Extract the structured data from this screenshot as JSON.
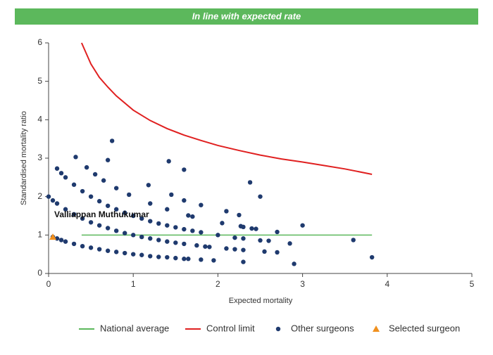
{
  "chart_data": {
    "type": "scatter",
    "banner": "In line with expected rate",
    "x_label": "Expected mortality",
    "y_label": "Standardised mortality ratio",
    "xlim": [
      0,
      5
    ],
    "xticks": [
      0,
      1,
      2,
      3,
      4,
      5
    ],
    "ylim": [
      0,
      6
    ],
    "yticks": [
      0,
      1,
      2,
      3,
      4,
      5,
      6
    ],
    "legend": "bottom",
    "annotation": {
      "text": "Valliappan Muthukumar",
      "x": 0.05,
      "y": 1.3
    },
    "series": [
      {
        "name": "National average",
        "type": "line",
        "color": "#5cb85c",
        "x": [
          0.39,
          3.82
        ],
        "values": [
          1,
          1
        ]
      },
      {
        "name": "Control limit",
        "type": "line",
        "color": "#e02020",
        "x": [
          0.39,
          0.5,
          0.6,
          0.7,
          0.8,
          1,
          1.2,
          1.4,
          1.6,
          1.8,
          2,
          2.25,
          2.5,
          2.75,
          3,
          3.25,
          3.5,
          3.82
        ],
        "values": [
          6.0,
          5.45,
          5.1,
          4.85,
          4.62,
          4.25,
          3.98,
          3.77,
          3.6,
          3.46,
          3.33,
          3.2,
          3.08,
          2.98,
          2.9,
          2.81,
          2.72,
          2.58
        ]
      },
      {
        "name": "Other surgeons",
        "type": "scatter",
        "color": "#1f3a6e",
        "x": [
          0.05,
          0.1,
          0.15,
          0.2,
          0.3,
          0.4,
          0.5,
          0.6,
          0.7,
          0.8,
          0.9,
          1.0,
          1.1,
          1.2,
          1.3,
          1.4,
          1.5,
          1.6,
          1.65,
          1.8,
          1.95,
          0,
          0.05,
          0.1,
          0.2,
          0.3,
          0.4,
          0.5,
          0.6,
          0.7,
          0.8,
          0.9,
          1.0,
          1.1,
          1.2,
          1.3,
          1.4,
          1.5,
          1.6,
          1.75,
          1.9,
          2.3,
          0.1,
          0.15,
          0.2,
          0.3,
          0.4,
          0.5,
          0.6,
          0.7,
          0.8,
          0.9,
          1.0,
          1.1,
          1.2,
          1.3,
          1.4,
          1.5,
          1.6,
          1.7,
          1.8,
          2.0,
          2.3,
          2.5,
          0.32,
          0.45,
          0.55,
          0.65,
          0.8,
          0.95,
          1.2,
          1.4,
          1.65,
          1.7,
          2.05,
          2.3,
          2.45,
          2.7,
          0.75,
          0.7,
          1.42,
          1.6,
          1.18,
          1.45,
          1.6,
          1.8,
          2.1,
          2.5,
          2.38,
          2.25,
          3.0,
          2.27,
          2.4,
          2.85,
          2.9,
          3.6,
          3.82,
          2.1,
          2.2,
          2.55,
          2.7,
          2.3,
          1.85,
          2.2,
          2.6
        ],
        "values": [
          0.95,
          0.91,
          0.87,
          0.83,
          0.77,
          0.71,
          0.67,
          0.63,
          0.59,
          0.56,
          0.53,
          0.5,
          0.48,
          0.45,
          0.43,
          0.42,
          0.4,
          0.38,
          0.38,
          0.36,
          0.34,
          2.0,
          1.9,
          1.82,
          1.67,
          1.54,
          1.43,
          1.33,
          1.25,
          1.18,
          1.11,
          1.05,
          1.0,
          0.95,
          0.91,
          0.87,
          0.83,
          0.8,
          0.77,
          0.73,
          0.69,
          0.61,
          2.73,
          2.61,
          2.5,
          2.31,
          2.14,
          2.0,
          1.88,
          1.76,
          1.67,
          1.58,
          1.5,
          1.43,
          1.36,
          1.3,
          1.25,
          1.2,
          1.15,
          1.11,
          1.07,
          1.0,
          0.91,
          0.86,
          3.03,
          2.76,
          2.58,
          2.42,
          2.22,
          2.05,
          1.82,
          1.67,
          1.51,
          1.48,
          1.31,
          1.21,
          1.16,
          1.08,
          3.45,
          2.95,
          2.92,
          2.7,
          2.3,
          2.05,
          1.9,
          1.78,
          1.62,
          2.0,
          2.37,
          1.52,
          1.25,
          1.23,
          1.17,
          0.78,
          0.25,
          0.87,
          0.42,
          0.65,
          0.63,
          0.57,
          0.55,
          0.3,
          0.7,
          0.93,
          0.85
        ]
      },
      {
        "name": "Selected surgeon",
        "type": "triangle",
        "color": "#f0901e",
        "x": [
          0.05
        ],
        "values": [
          0.95
        ]
      }
    ]
  }
}
